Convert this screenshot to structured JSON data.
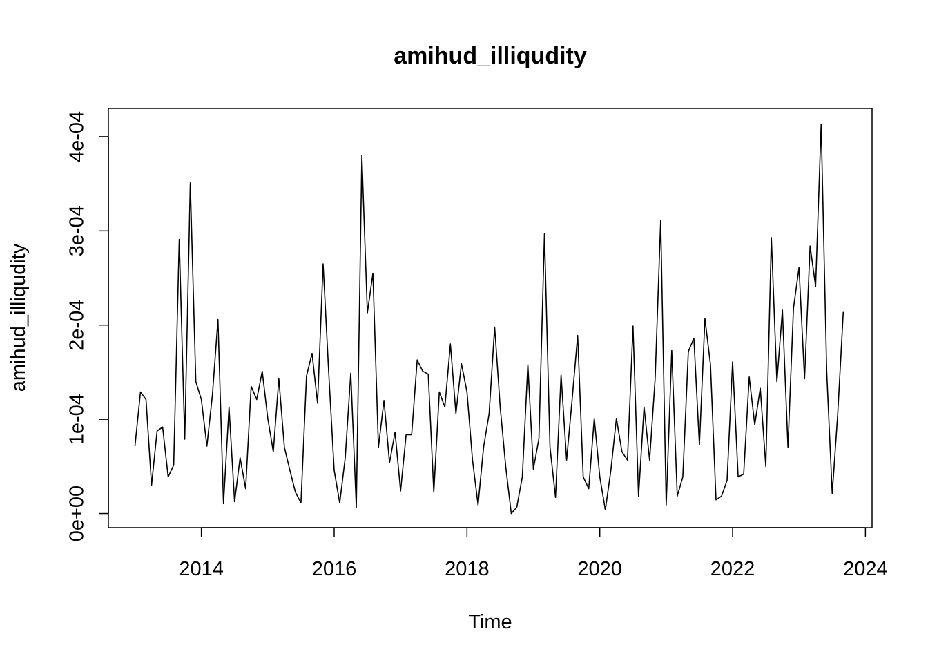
{
  "chart_data": {
    "type": "line",
    "title": "amihud_illiqudity",
    "xlabel": "Time",
    "ylabel": "amihud_illiqudity",
    "xlim": [
      2012.6,
      2024.1
    ],
    "ylim": [
      -1.5e-05,
      0.00043
    ],
    "x_ticks": [
      2014,
      2016,
      2018,
      2020,
      2022,
      2024
    ],
    "x_tick_labels": [
      "2014",
      "2016",
      "2018",
      "2020",
      "2022",
      "2024"
    ],
    "y_ticks": [
      0,
      0.0001,
      0.0002,
      0.0003,
      0.0004
    ],
    "y_tick_labels": [
      "0e+00",
      "1e-04",
      "2e-04",
      "3e-04",
      "4e-04"
    ],
    "grid": false,
    "legend": "none",
    "color": "#000000",
    "series": [
      {
        "start_year": 2013,
        "start_month": 1,
        "frequency": 12,
        "values": [
          7.15e-05,
          0.000129,
          0.000121,
          3.01e-05,
          8.76e-05,
          9.18e-05,
          3.89e-05,
          5.14e-05,
          0.000291,
          7.89e-05,
          0.000351,
          0.00014,
          0.000121,
          7.15e-05,
          0.000126,
          0.000206,
          1.04e-05,
          0.000113,
          1.25e-05,
          5.92e-05,
          2.64e-05,
          0.000135,
          0.000121,
          0.000151,
          0.000101,
          6.56e-05,
          0.000143,
          7.04e-05,
          4.58e-05,
          2.26e-05,
          1.13e-05,
          0.000146,
          0.00017,
          0.000117,
          0.000265,
          0.000151,
          4.58e-05,
          1.13e-05,
          5.92e-05,
          0.000149,
          6.7e-06,
          0.00038,
          0.000213,
          0.000255,
          7.04e-05,
          0.00012,
          5.39e-05,
          8.63e-05,
          2.39e-05,
          8.36e-05,
          8.36e-05,
          0.000163,
          0.000151,
          0.000148,
          2.26e-05,
          0.000129,
          0.000113,
          0.00018,
          0.000106,
          0.000159,
          0.000129,
          5.67e-05,
          9.1e-06,
          7.04e-05,
          0.000106,
          0.000198,
          0.000113,
          4.99e-05,
          0.0,
          6.7e-06,
          3.89e-05,
          0.000158,
          4.71e-05,
          7.95e-05,
          0.000297,
          7.04e-05,
          1.71e-05,
          0.000147,
          5.67e-05,
          0.000121,
          0.000189,
          3.89e-05,
          2.64e-05,
          0.000101,
          3.89e-05,
          3.8e-06,
          4.58e-05,
          0.000101,
          6.56e-05,
          5.67e-05,
          0.000199,
          1.85e-05,
          0.000113,
          5.67e-05,
          0.000143,
          0.000311,
          9.1e-06,
          0.000173,
          1.85e-05,
          3.89e-05,
          0.000172,
          0.000186,
          7.28e-05,
          0.000207,
          0.000158,
          1.45e-05,
          1.85e-05,
          3.52e-05,
          0.000161,
          3.89e-05,
          4.18e-05,
          0.000145,
          9.42e-05,
          0.000133,
          4.99e-05,
          0.000293,
          0.00014,
          0.000216,
          7.04e-05,
          0.000218,
          0.000261,
          0.000143,
          0.000284,
          0.000241,
          0.000413,
          0.000151,
          2.11e-05,
          0.000106,
          0.000214
        ]
      }
    ]
  }
}
